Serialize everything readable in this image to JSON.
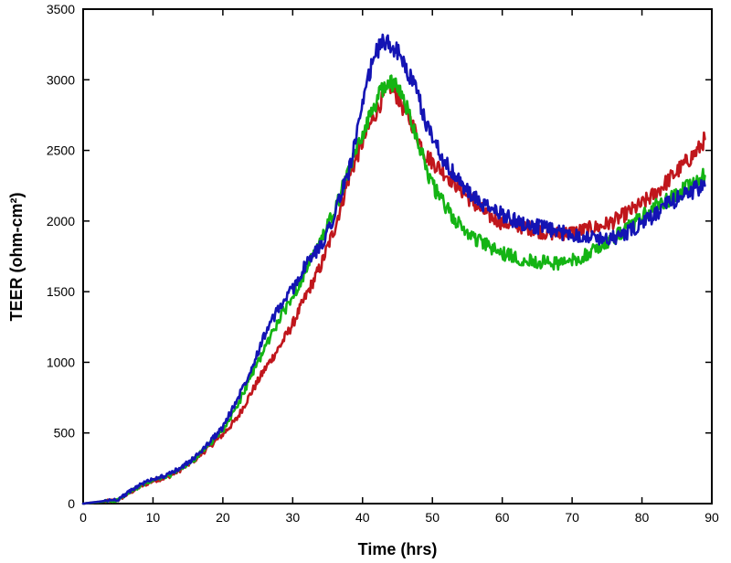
{
  "chart_data": {
    "type": "line",
    "title": "",
    "xlabel": "Time (hrs)",
    "ylabel": "TEER (ohm-cm²)",
    "xlim": [
      0,
      90
    ],
    "ylim": [
      0,
      3500
    ],
    "xticks": [
      0,
      10,
      20,
      30,
      40,
      50,
      60,
      70,
      80,
      90
    ],
    "yticks": [
      0,
      500,
      1000,
      1500,
      2000,
      2500,
      3000,
      3500
    ],
    "grid": false,
    "legend": "none",
    "series": [
      {
        "name": "red",
        "color": "#c0161c",
        "x": [
          0,
          2,
          5,
          8,
          10,
          12,
          14,
          16,
          18,
          20,
          22,
          24,
          26,
          28,
          30,
          32,
          34,
          36,
          38,
          40,
          42,
          43,
          44,
          45,
          46,
          47,
          48,
          49,
          50,
          52,
          54,
          56,
          58,
          60,
          62,
          64,
          66,
          68,
          70,
          72,
          74,
          76,
          78,
          80,
          82,
          84,
          86,
          88,
          89
        ],
        "y": [
          0,
          10,
          25,
          115,
          160,
          185,
          240,
          310,
          400,
          490,
          600,
          780,
          950,
          1100,
          1270,
          1480,
          1680,
          1950,
          2300,
          2560,
          2780,
          2880,
          2950,
          2880,
          2780,
          2700,
          2580,
          2470,
          2420,
          2330,
          2230,
          2120,
          2040,
          1990,
          1970,
          1950,
          1920,
          1910,
          1920,
          1940,
          1960,
          2000,
          2060,
          2120,
          2200,
          2300,
          2400,
          2500,
          2580
        ]
      },
      {
        "name": "green",
        "color": "#14b414",
        "x": [
          0,
          2,
          5,
          8,
          10,
          12,
          14,
          16,
          18,
          20,
          22,
          24,
          26,
          28,
          30,
          32,
          34,
          36,
          38,
          40,
          42,
          43,
          44,
          45,
          46,
          47,
          48,
          49,
          50,
          52,
          54,
          56,
          58,
          60,
          62,
          64,
          66,
          68,
          70,
          72,
          74,
          76,
          78,
          80,
          82,
          84,
          86,
          88,
          89
        ],
        "y": [
          0,
          10,
          25,
          120,
          165,
          190,
          245,
          315,
          420,
          520,
          680,
          900,
          1100,
          1300,
          1470,
          1660,
          1850,
          2070,
          2350,
          2620,
          2850,
          2950,
          2990,
          2940,
          2850,
          2720,
          2560,
          2400,
          2250,
          2090,
          1960,
          1880,
          1820,
          1770,
          1740,
          1720,
          1710,
          1700,
          1720,
          1760,
          1820,
          1880,
          1950,
          2030,
          2100,
          2160,
          2220,
          2280,
          2320
        ]
      },
      {
        "name": "blue",
        "color": "#1414b4",
        "x": [
          0,
          2,
          5,
          8,
          10,
          12,
          14,
          16,
          18,
          20,
          22,
          24,
          26,
          28,
          30,
          32,
          34,
          36,
          38,
          40,
          41,
          42,
          43,
          44,
          45,
          46,
          47,
          48,
          49,
          50,
          52,
          54,
          56,
          58,
          60,
          62,
          64,
          66,
          68,
          70,
          72,
          74,
          76,
          78,
          80,
          82,
          84,
          86,
          88,
          89
        ],
        "y": [
          0,
          12,
          30,
          130,
          175,
          200,
          255,
          325,
          430,
          540,
          730,
          950,
          1200,
          1380,
          1520,
          1700,
          1820,
          2050,
          2350,
          2800,
          3050,
          3200,
          3270,
          3250,
          3200,
          3100,
          3000,
          2880,
          2700,
          2600,
          2400,
          2270,
          2160,
          2090,
          2050,
          2000,
          1970,
          1950,
          1920,
          1910,
          1890,
          1880,
          1880,
          1920,
          1980,
          2050,
          2130,
          2190,
          2230,
          2250
        ]
      }
    ]
  }
}
